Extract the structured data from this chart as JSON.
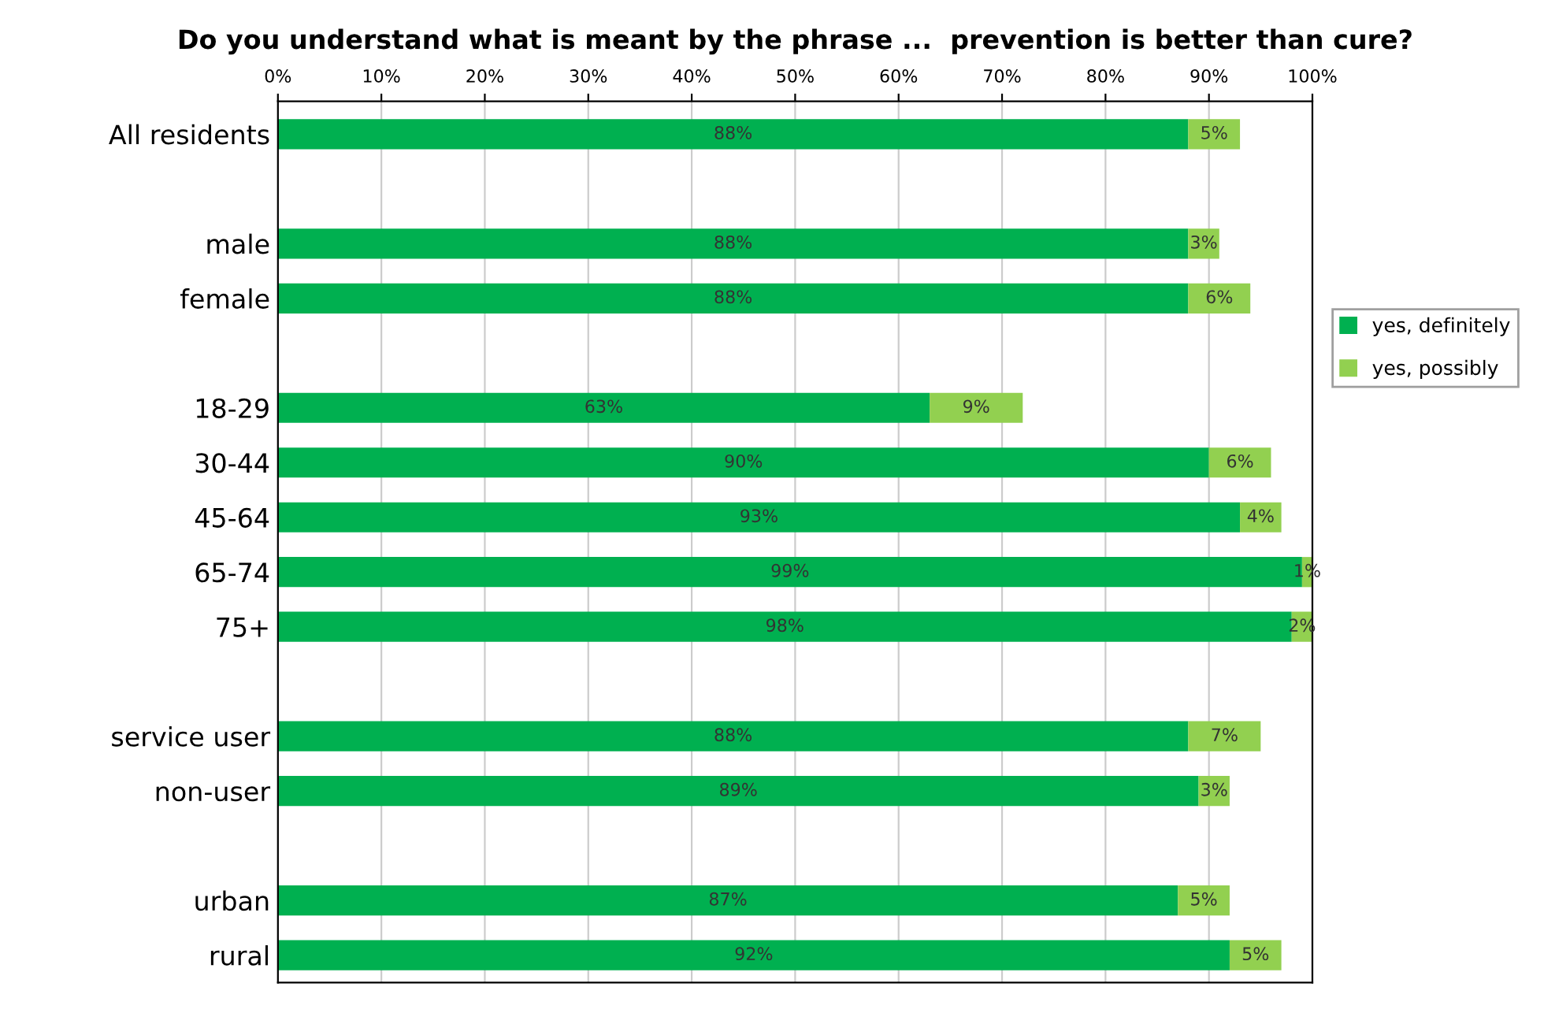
{
  "chart_data": {
    "type": "bar",
    "orientation": "horizontal",
    "stacked": true,
    "title": "Do you understand what is meant by the phrase ...  prevention is better than cure?",
    "categories": [
      "All residents",
      null,
      "male",
      "female",
      null,
      "18-29",
      "30-44",
      "45-64",
      "65-74",
      "75+",
      null,
      "service user",
      "non-user",
      null,
      "urban",
      "rural"
    ],
    "series": [
      {
        "name": "yes, definitely",
        "color": "#00b050",
        "values": [
          88,
          null,
          88,
          88,
          null,
          63,
          90,
          93,
          99,
          98,
          null,
          88,
          89,
          null,
          87,
          92
        ],
        "value_labels": [
          "88%",
          null,
          "88%",
          "88%",
          null,
          "63%",
          "90%",
          "93%",
          "99%",
          "98%",
          null,
          "88%",
          "89%",
          null,
          "87%",
          "92%"
        ]
      },
      {
        "name": "yes, possibly",
        "color": "#92d050",
        "values": [
          5,
          null,
          3,
          6,
          null,
          9,
          6,
          4,
          1,
          2,
          null,
          7,
          3,
          null,
          5,
          5
        ],
        "value_labels": [
          "5%",
          null,
          "3%",
          "6%",
          null,
          "9%",
          "6%",
          "4%",
          "1%",
          "2%",
          null,
          "7%",
          "3%",
          null,
          "5%",
          "5%"
        ]
      }
    ],
    "xlim": [
      0,
      100
    ],
    "xticks": [
      {
        "value": 0,
        "label": "0%"
      },
      {
        "value": 10,
        "label": "10%"
      },
      {
        "value": 20,
        "label": "20%"
      },
      {
        "value": 30,
        "label": "30%"
      },
      {
        "value": 40,
        "label": "40%"
      },
      {
        "value": 50,
        "label": "50%"
      },
      {
        "value": 60,
        "label": "60%"
      },
      {
        "value": 70,
        "label": "70%"
      },
      {
        "value": 80,
        "label": "80%"
      },
      {
        "value": 90,
        "label": "90%"
      },
      {
        "value": 100,
        "label": "100%"
      }
    ],
    "grid": "x",
    "legend": "right"
  }
}
